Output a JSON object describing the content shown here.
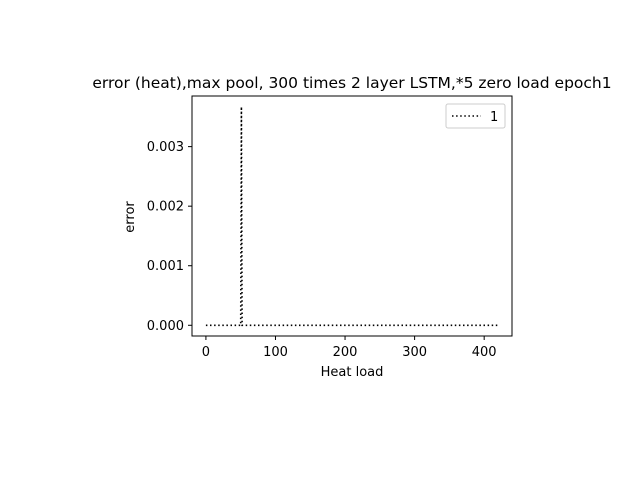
{
  "chart_data": {
    "type": "line",
    "title": "error (heat),max pool, 300 times 2 layer LSTM,*5 zero load epoch1",
    "xlabel": "Heat load",
    "ylabel": "error",
    "xlim": [
      -20,
      440
    ],
    "ylim": [
      -0.00018,
      0.00385
    ],
    "xticks": [
      0,
      100,
      200,
      300,
      400
    ],
    "xtick_labels": [
      "0",
      "100",
      "200",
      "300",
      "400"
    ],
    "yticks": [
      0,
      0.001,
      0.002,
      0.003
    ],
    "ytick_labels": [
      "0.000",
      "0.001",
      "0.002",
      "0.003"
    ],
    "grid": false,
    "legend_position": "top-right",
    "series": [
      {
        "name": "1",
        "color": "#000000",
        "linestyle": "dotted",
        "x": [
          0,
          50,
          51,
          52,
          420
        ],
        "y": [
          0,
          0,
          0.00367,
          0,
          0
        ]
      }
    ]
  }
}
